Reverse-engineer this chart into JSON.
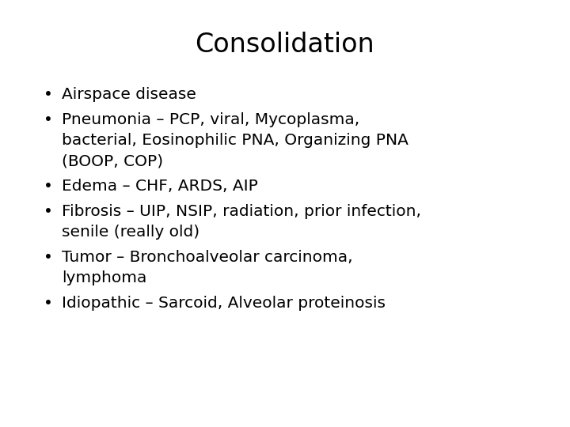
{
  "title": "Consolidation",
  "title_fontsize": 24,
  "background_color": "#ffffff",
  "text_color": "#000000",
  "bullet_char": "•",
  "bullet_fontsize": 14.5,
  "font_family": "DejaVu Sans",
  "bullets": [
    {
      "lines": [
        "Airspace disease"
      ]
    },
    {
      "lines": [
        "Pneumonia – PCP, viral, Mycoplasma,",
        "bacterial, Eosinophilic PNA, Organizing PNA",
        "(BOOP, COP)"
      ]
    },
    {
      "lines": [
        "Edema – CHF, ARDS, AIP"
      ]
    },
    {
      "lines": [
        "Fibrosis – UIP, NSIP, radiation, prior infection,",
        "senile (really old)"
      ]
    },
    {
      "lines": [
        "Tumor – Bronchoalveolar carcinoma,",
        "lymphoma"
      ]
    },
    {
      "lines": [
        "Idiopathic – Sarcoid, Alveolar proteinosis"
      ]
    }
  ]
}
